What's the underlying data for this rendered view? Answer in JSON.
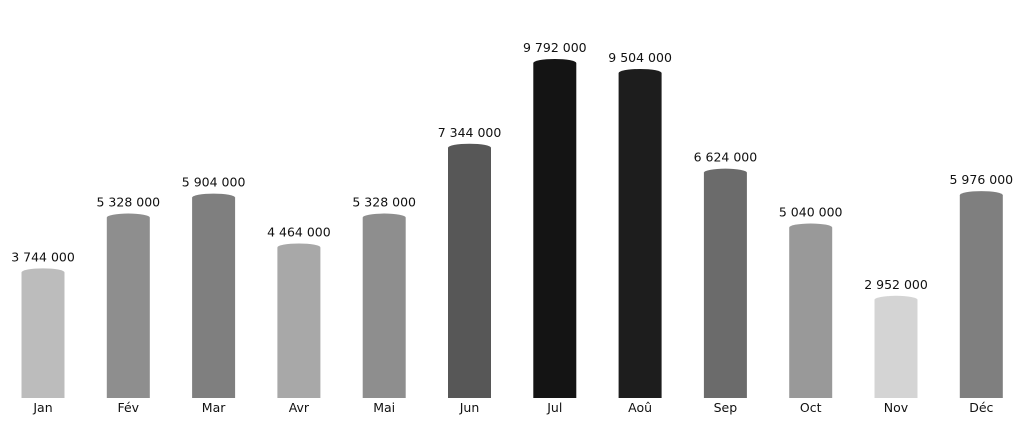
{
  "chart_data": {
    "type": "bar",
    "categories": [
      "Jan",
      "Fév",
      "Mar",
      "Avr",
      "Mai",
      "Jun",
      "Jul",
      "Aoû",
      "Sep",
      "Oct",
      "Nov",
      "Déc"
    ],
    "values": [
      3744000,
      5328000,
      5904000,
      4464000,
      5328000,
      7344000,
      9792000,
      9504000,
      6624000,
      5040000,
      2952000,
      5976000
    ],
    "value_labels": [
      "3 744 000",
      "5 328 000",
      "5 904 000",
      "4 464 000",
      "5 328 000",
      "7 344 000",
      "9 792 000",
      "9 504 000",
      "6 624 000",
      "5 040 000",
      "2 952 000",
      "5 976 000"
    ],
    "bar_colors": [
      "#bcbcbc",
      "#8e8e8e",
      "#7f7f7f",
      "#a8a8a8",
      "#8e8e8e",
      "#575757",
      "#141414",
      "#1d1d1d",
      "#6b6b6b",
      "#999999",
      "#d4d4d4",
      "#7f7f7f"
    ],
    "title": "",
    "xlabel": "",
    "ylabel": "",
    "ylim": [
      0,
      9792000
    ],
    "grid": false,
    "legend": "none"
  }
}
